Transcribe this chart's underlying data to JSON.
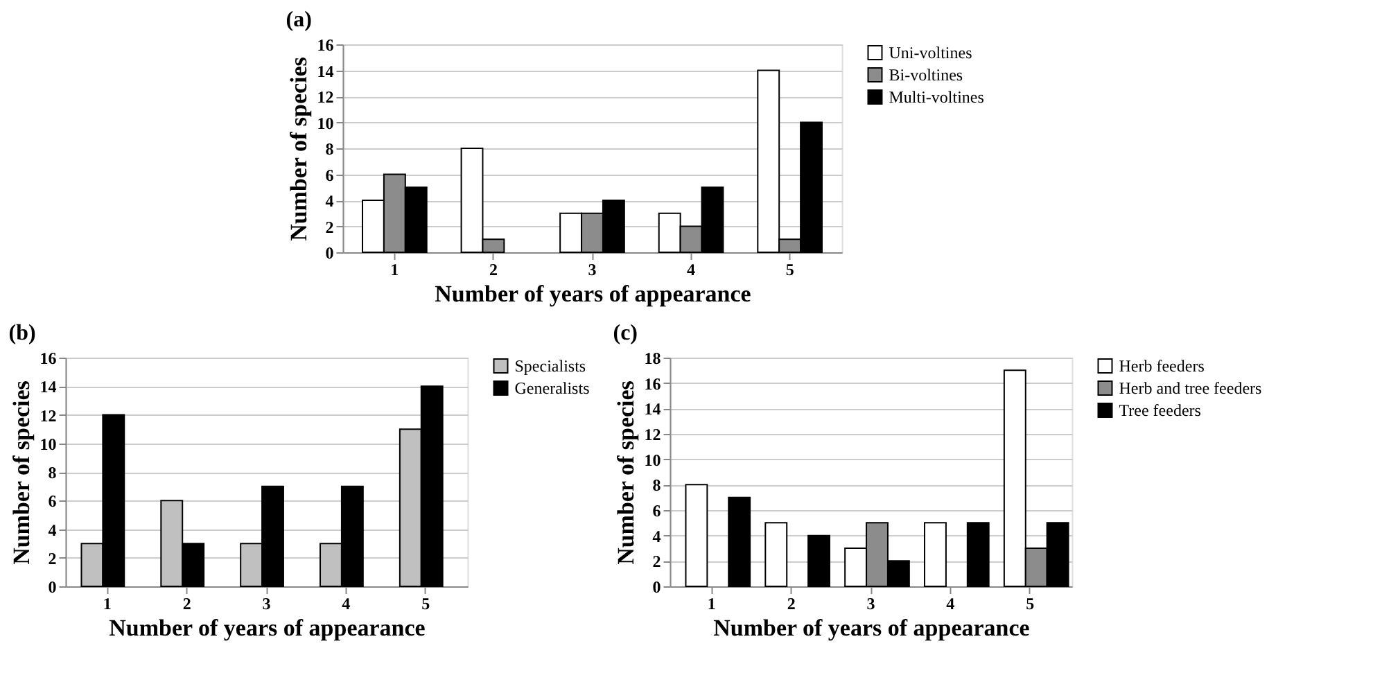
{
  "chart_data": [
    {
      "type": "bar",
      "title": "(a)",
      "xlabel": "Number of years of appearance",
      "ylabel": "Number of species",
      "categories": [
        "1",
        "2",
        "3",
        "4",
        "5"
      ],
      "ylim": [
        0,
        16
      ],
      "yticks": [
        0,
        2,
        4,
        6,
        8,
        10,
        12,
        14,
        16
      ],
      "grid": "y",
      "legend": "right",
      "series": [
        {
          "name": "Uni-voltines",
          "color": "#ffffff",
          "values": [
            4,
            8,
            3,
            3,
            14
          ]
        },
        {
          "name": "Bi-voltines",
          "color": "#8c8c8c",
          "values": [
            6,
            1,
            3,
            2,
            1
          ]
        },
        {
          "name": "Multi-voltines",
          "color": "#000000",
          "values": [
            5,
            0,
            4,
            5,
            10
          ]
        }
      ]
    },
    {
      "type": "bar",
      "title": "(b)",
      "xlabel": "Number of years of appearance",
      "ylabel": "Number of species",
      "categories": [
        "1",
        "2",
        "3",
        "4",
        "5"
      ],
      "ylim": [
        0,
        16
      ],
      "yticks": [
        0,
        2,
        4,
        6,
        8,
        10,
        12,
        14,
        16
      ],
      "grid": "y",
      "legend": "right",
      "series": [
        {
          "name": "Specialists",
          "color": "#c0c0c0",
          "values": [
            3,
            6,
            3,
            3,
            11
          ]
        },
        {
          "name": "Generalists",
          "color": "#000000",
          "values": [
            12,
            3,
            7,
            7,
            14
          ]
        }
      ]
    },
    {
      "type": "bar",
      "title": "(c)",
      "xlabel": "Number of years of appearance",
      "ylabel": "Number of species",
      "categories": [
        "1",
        "2",
        "3",
        "4",
        "5"
      ],
      "ylim": [
        0,
        18
      ],
      "yticks": [
        0,
        2,
        4,
        6,
        8,
        10,
        12,
        14,
        16,
        18
      ],
      "grid": "y",
      "legend": "right",
      "series": [
        {
          "name": "Herb feeders",
          "color": "#ffffff",
          "values": [
            8,
            5,
            3,
            5,
            17
          ]
        },
        {
          "name": "Herb and tree feeders",
          "color": "#8c8c8c",
          "values": [
            0,
            0,
            5,
            0,
            3
          ]
        },
        {
          "name": "Tree feeders",
          "color": "#000000",
          "values": [
            7,
            4,
            2,
            5,
            5
          ]
        }
      ]
    }
  ]
}
